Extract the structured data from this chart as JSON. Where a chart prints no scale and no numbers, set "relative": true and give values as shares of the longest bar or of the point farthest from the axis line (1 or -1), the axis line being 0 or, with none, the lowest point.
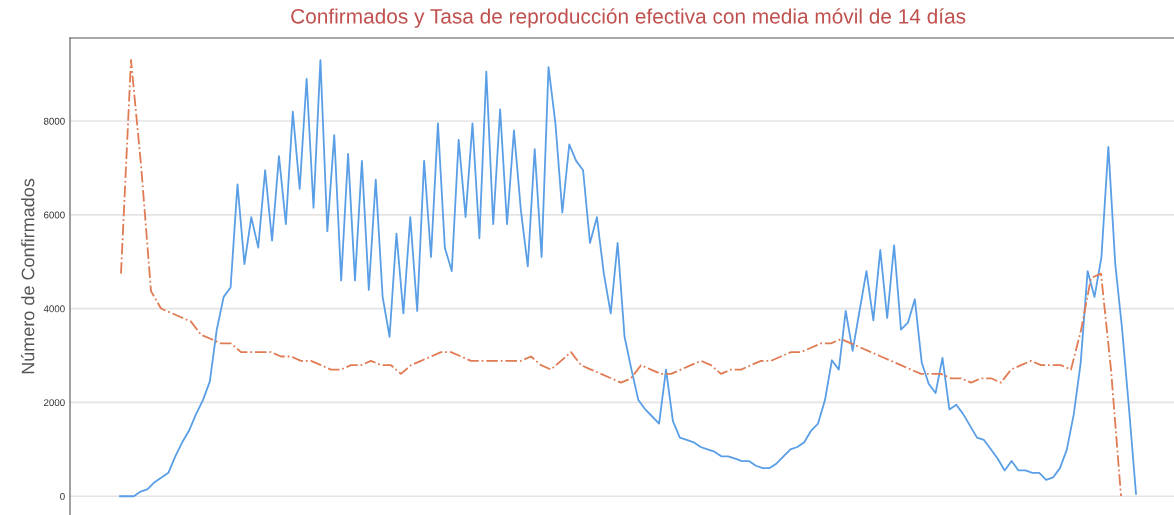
{
  "chart_data": [
    {
      "type": "line",
      "title": "Confirmados y Tasa de reproducción efectiva con media móvil de 14 días",
      "ylabel": "Número de Confirmados",
      "ylim": [
        -400,
        9770
      ],
      "yticks": [
        0,
        2000,
        4000,
        6000,
        8000
      ],
      "grid": "y",
      "tick_labels": "y",
      "line_style": "solid",
      "categories": [
        null,
        null,
        null,
        null,
        null,
        null,
        null,
        null,
        null,
        null,
        null,
        null,
        null,
        null,
        null,
        null,
        null,
        null,
        null,
        null,
        null,
        null,
        null,
        null,
        null,
        null,
        null,
        null,
        null,
        null,
        null,
        null,
        null,
        null,
        null,
        null,
        null,
        null,
        null,
        null,
        null,
        null,
        null,
        null,
        null,
        null,
        null,
        null,
        null,
        null,
        null,
        null,
        null,
        null,
        null,
        null,
        null,
        null,
        null,
        null,
        null,
        null,
        null,
        null,
        null,
        null,
        null,
        null,
        null,
        null,
        null,
        null,
        null,
        null,
        null,
        null,
        null,
        null,
        null,
        null,
        null,
        null,
        null,
        null,
        null,
        null,
        null,
        null,
        null,
        null,
        null,
        null,
        null,
        null,
        null,
        null,
        null,
        null,
        null,
        null,
        null,
        null,
        null,
        null,
        null,
        null,
        null,
        null,
        null,
        null,
        null,
        null,
        null,
        null,
        null,
        null,
        null,
        null,
        null,
        null,
        null,
        null,
        null,
        null,
        null,
        null,
        null,
        null,
        null,
        null,
        null,
        null,
        null,
        null,
        null,
        null,
        null,
        null,
        null,
        null,
        null,
        null,
        null,
        null,
        null,
        null,
        null,
        null
      ],
      "series": [
        {
          "color": "#5a9fe6",
          "values": [
            0,
            0,
            0,
            100,
            150,
            300,
            400,
            500,
            850,
            1150,
            1400,
            1750,
            2050,
            2450,
            3550,
            4250,
            4450,
            6650,
            4950,
            5950,
            5300,
            6950,
            5450,
            7250,
            5800,
            8200,
            6550,
            8900,
            6150,
            9300,
            5650,
            7700,
            4600,
            7300,
            4600,
            7150,
            4400,
            6750,
            4250,
            3400,
            5600,
            3900,
            5950,
            3950,
            7150,
            5100,
            7950,
            5300,
            4800,
            7600,
            5950,
            7950,
            5500,
            9050,
            5800,
            8250,
            5800,
            7800,
            6100,
            4900,
            7400,
            5100,
            9150,
            7950,
            6050,
            7500,
            7150,
            6950,
            5400,
            5950,
            4750,
            3900,
            5400,
            3400,
            2700,
            2050,
            1850,
            1700,
            1550,
            2700,
            1600,
            1250,
            1200,
            1150,
            1050,
            1000,
            950,
            850,
            850,
            800,
            750,
            750,
            650,
            600,
            600,
            700,
            850,
            1000,
            1050,
            1150,
            1400,
            1550,
            2050,
            2900,
            2700,
            3950,
            3100,
            3950,
            4800,
            3750,
            5250,
            3800,
            5350,
            3550,
            3700,
            4200,
            2850,
            2400,
            2200,
            2950,
            1850,
            1950,
            1750,
            1500,
            1250,
            1200,
            1000,
            800,
            550,
            750,
            550,
            550,
            500,
            500,
            350,
            400,
            600,
            1000,
            1750,
            2850,
            4800,
            4250,
            5100,
            7450,
            4950,
            3550,
            1850,
            50
          ]
        }
      ]
    },
    {
      "type": "line",
      "relative": true,
      "line_style": "dashed",
      "categories": [
        null,
        null,
        null,
        null,
        null,
        null,
        null,
        null,
        null,
        null,
        null,
        null,
        null,
        null,
        null,
        null,
        null,
        null,
        null,
        null,
        null,
        null,
        null,
        null,
        null,
        null,
        null,
        null,
        null,
        null,
        null,
        null,
        null,
        null,
        null,
        null,
        null,
        null,
        null,
        null,
        null,
        null,
        null,
        null,
        null,
        null,
        null,
        null,
        null,
        null,
        null,
        null,
        null,
        null,
        null,
        null,
        null,
        null,
        null,
        null,
        null,
        null,
        null,
        null,
        null,
        null,
        null,
        null,
        null,
        null,
        null,
        null,
        null,
        null,
        null,
        null,
        null,
        null,
        null,
        null,
        null,
        null,
        null,
        null,
        null,
        null,
        null,
        null,
        null,
        null,
        null,
        null,
        null,
        null,
        null,
        null,
        null,
        null,
        null,
        null,
        null
      ],
      "series": [
        {
          "color": "#e07b54",
          "values": [
            0.51,
            1.0,
            0.76,
            0.47,
            0.43,
            0.42,
            0.41,
            0.4,
            0.37,
            0.36,
            0.35,
            0.35,
            0.33,
            0.33,
            0.33,
            0.33,
            0.32,
            0.32,
            0.31,
            0.31,
            0.3,
            0.29,
            0.29,
            0.3,
            0.3,
            0.31,
            0.3,
            0.3,
            0.28,
            0.3,
            0.31,
            0.32,
            0.33,
            0.33,
            0.32,
            0.31,
            0.31,
            0.31,
            0.31,
            0.31,
            0.31,
            0.32,
            0.3,
            0.29,
            0.31,
            0.33,
            0.3,
            0.29,
            0.28,
            0.27,
            0.26,
            0.27,
            0.3,
            0.29,
            0.28,
            0.28,
            0.29,
            0.3,
            0.31,
            0.3,
            0.28,
            0.29,
            0.29,
            0.3,
            0.31,
            0.31,
            0.32,
            0.33,
            0.33,
            0.34,
            0.35,
            0.35,
            0.36,
            0.35,
            0.34,
            0.33,
            0.32,
            0.31,
            0.3,
            0.29,
            0.28,
            0.28,
            0.28,
            0.27,
            0.27,
            0.26,
            0.27,
            0.27,
            0.26,
            0.29,
            0.3,
            0.31,
            0.3,
            0.3,
            0.3,
            0.29,
            0.38,
            0.5,
            0.51,
            0.29,
            0.0
          ]
        }
      ]
    }
  ]
}
